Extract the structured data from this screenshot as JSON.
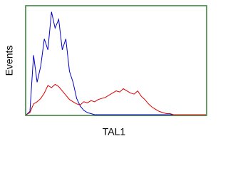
{
  "chart_data": {
    "type": "line",
    "x_label": "TAL1",
    "y_label": "Events",
    "x": [
      0,
      2,
      4,
      6,
      8,
      10,
      12,
      14,
      16,
      18,
      20,
      22,
      24,
      26,
      28,
      30,
      32,
      34,
      36,
      38,
      40,
      42,
      44,
      46,
      48,
      50,
      52,
      54,
      56,
      58,
      60,
      62,
      64,
      66,
      68,
      70,
      72,
      74,
      76,
      78,
      80,
      82,
      84,
      86,
      88,
      90,
      92,
      94,
      96,
      98,
      100
    ],
    "xlim": [
      0,
      100
    ],
    "ylim": [
      0,
      100
    ],
    "series": [
      {
        "color": "#0000cc",
        "values": [
          0,
          3,
          55,
          30,
          45,
          70,
          60,
          95,
          80,
          88,
          60,
          70,
          40,
          30,
          15,
          8,
          4,
          2,
          1,
          0,
          0,
          0,
          0,
          0,
          0,
          0,
          0,
          0,
          0,
          0,
          0,
          0,
          0,
          0,
          0,
          0,
          0,
          0,
          0,
          0,
          0,
          0,
          0,
          0,
          0,
          0,
          0,
          0,
          0,
          0,
          0
        ]
      },
      {
        "color": "#dd0000",
        "values": [
          0,
          2,
          10,
          12,
          15,
          20,
          27,
          25,
          28,
          26,
          22,
          18,
          14,
          12,
          10,
          9,
          12,
          11,
          13,
          12,
          14,
          15,
          16,
          18,
          20,
          22,
          21,
          24,
          22,
          20,
          19,
          22,
          17,
          14,
          10,
          7,
          5,
          3,
          2,
          1,
          1,
          0,
          0,
          0,
          0,
          0,
          0,
          0,
          0,
          0,
          0
        ]
      }
    ]
  }
}
